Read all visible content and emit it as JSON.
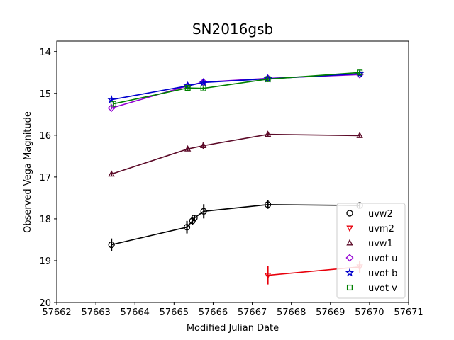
{
  "chart_data": {
    "type": "scatter",
    "title": "SN2016gsb",
    "xlabel": "Modified Julian Date",
    "ylabel": "Observed Vega Magnitude",
    "xlim": [
      57662,
      57671
    ],
    "ylim": [
      20,
      13.75
    ],
    "y_inverted": true,
    "x_ticks": [
      57662,
      57663,
      57664,
      57665,
      57666,
      57667,
      57668,
      57669,
      57670,
      57671
    ],
    "y_ticks": [
      14,
      15,
      16,
      17,
      18,
      19,
      20
    ],
    "grid": false,
    "legend_position": "lower-right",
    "series": [
      {
        "name": "uvw2",
        "color": "#000000",
        "marker": "circle",
        "points": [
          {
            "x": 57663.4,
            "y": 18.62,
            "err": 0.15
          },
          {
            "x": 57665.33,
            "y": 18.2,
            "err": 0.15
          },
          {
            "x": 57665.47,
            "y": 18.05,
            "err": 0.1
          },
          {
            "x": 57665.52,
            "y": 17.98,
            "err": 0.08
          },
          {
            "x": 57665.76,
            "y": 17.82,
            "err": 0.17
          },
          {
            "x": 57667.4,
            "y": 17.66,
            "err": 0.1
          },
          {
            "x": 57669.75,
            "y": 17.68,
            "err": 0.07
          }
        ]
      },
      {
        "name": "uvm2",
        "color": "#e8000b",
        "marker": "triangle-down",
        "points": [
          {
            "x": 57667.4,
            "y": 19.35,
            "err": 0.22
          },
          {
            "x": 57669.75,
            "y": 19.15,
            "err": 0.15
          }
        ]
      },
      {
        "name": "uvw1",
        "color": "#5c0a28",
        "marker": "triangle-up",
        "points": [
          {
            "x": 57663.4,
            "y": 16.93,
            "err": 0.05
          },
          {
            "x": 57665.35,
            "y": 16.33,
            "err": 0.05
          },
          {
            "x": 57665.75,
            "y": 16.25,
            "err": 0.08
          },
          {
            "x": 57667.4,
            "y": 15.98,
            "err": 0.04
          },
          {
            "x": 57669.75,
            "y": 16.01,
            "err": 0.03
          }
        ]
      },
      {
        "name": "uvot u",
        "color": "#9400d3",
        "marker": "diamond",
        "points": [
          {
            "x": 57663.4,
            "y": 15.35,
            "err": 0.03
          },
          {
            "x": 57665.35,
            "y": 14.82,
            "err": 0.03
          },
          {
            "x": 57665.75,
            "y": 14.73,
            "err": 0.03
          },
          {
            "x": 57667.4,
            "y": 14.64,
            "err": 0.03
          },
          {
            "x": 57669.75,
            "y": 14.55,
            "err": 0.03
          }
        ]
      },
      {
        "name": "uvot b",
        "color": "#0000cd",
        "marker": "star",
        "points": [
          {
            "x": 57663.4,
            "y": 15.15,
            "err": 0.03
          },
          {
            "x": 57665.35,
            "y": 14.82,
            "err": 0.03
          },
          {
            "x": 57665.75,
            "y": 14.74,
            "err": 0.03
          },
          {
            "x": 57667.4,
            "y": 14.65,
            "err": 0.03
          },
          {
            "x": 57669.75,
            "y": 14.53,
            "err": 0.03
          }
        ]
      },
      {
        "name": "uvot v",
        "color": "#008000",
        "marker": "square",
        "points": [
          {
            "x": 57663.45,
            "y": 15.25,
            "err": 0.05
          },
          {
            "x": 57665.35,
            "y": 14.87,
            "err": 0.04
          },
          {
            "x": 57665.75,
            "y": 14.88,
            "err": 0.04
          },
          {
            "x": 57667.4,
            "y": 14.66,
            "err": 0.04
          },
          {
            "x": 57669.75,
            "y": 14.5,
            "err": 0.04
          }
        ]
      }
    ]
  }
}
